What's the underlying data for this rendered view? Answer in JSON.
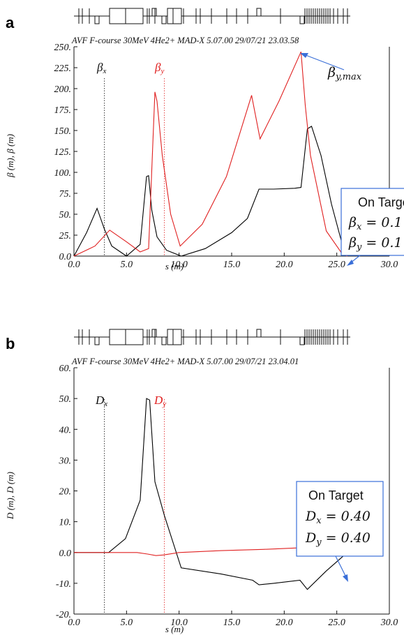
{
  "chart_data": [
    {
      "panel": "a",
      "type": "line",
      "header": "AVF F-course 30MeV 4He2+   MAD-X 5.07.00  29/07/21 23.03.58",
      "ylabel": "β (m), β (m)",
      "xlabel": "s (m)",
      "xlim": [
        0,
        30
      ],
      "ylim": [
        0,
        250
      ],
      "xticks": [
        "0.0",
        "5.0",
        "10.0",
        "15.0",
        "20.0",
        "25.0",
        "30.0"
      ],
      "yticks": [
        "0.0",
        "25.",
        "50.",
        "75.",
        "100.",
        "125.",
        "150.",
        "175.",
        "200.",
        "225.",
        "250."
      ],
      "grid": false,
      "series": [
        {
          "name": "βx",
          "color": "#000000",
          "marker_x": 2.9,
          "x": [
            0.0,
            1.2,
            2.2,
            2.9,
            3.6,
            5.0,
            6.3,
            6.9,
            7.1,
            7.4,
            7.9,
            8.8,
            10.2,
            12.5,
            15.0,
            16.5,
            17.6,
            19.0,
            21.0,
            21.6,
            22.2,
            22.6,
            23.5,
            24.5,
            25.5,
            26.0
          ],
          "y": [
            0.0,
            28.0,
            57.0,
            32.0,
            12.0,
            0.0,
            14.0,
            95.0,
            96.0,
            55.0,
            23.0,
            7.0,
            0.0,
            9.0,
            28.0,
            45.0,
            80.0,
            80.0,
            81.0,
            82.0,
            152.0,
            155.0,
            120.0,
            62.0,
            15.0,
            0.0
          ]
        },
        {
          "name": "βy",
          "color": "#e02020",
          "marker_x": 8.6,
          "x": [
            0.0,
            2.0,
            3.4,
            5.0,
            6.3,
            7.1,
            7.7,
            7.9,
            8.4,
            9.2,
            10.1,
            12.2,
            14.5,
            16.9,
            17.7,
            19.5,
            21.6,
            22.0,
            22.5,
            24.0,
            25.5,
            26.0
          ],
          "y": [
            0.0,
            12.0,
            31.0,
            17.0,
            5.0,
            9.0,
            196.0,
            185.0,
            120.0,
            50.0,
            12.0,
            38.0,
            95.0,
            192.0,
            140.0,
            185.0,
            244.0,
            180.0,
            120.0,
            30.0,
            3.0,
            0.0
          ]
        }
      ],
      "series_labels": [
        "βx",
        "βy"
      ],
      "annotations": {
        "beta_ymax_label": "βy,max",
        "target_box_title": "On Targe",
        "target_box_line1": "βx = 0.1",
        "target_box_line2": "βy = 0.1"
      }
    },
    {
      "panel": "b",
      "type": "line",
      "header": "AVF F-course 30MeV 4He2+   MAD-X 5.07.00  29/07/21 23.04.01",
      "ylabel": "D (m), D (m)",
      "xlabel": "s (m)",
      "xlim": [
        0,
        30
      ],
      "ylim": [
        -20,
        60
      ],
      "xticks": [
        "0.0",
        "5.0",
        "10.0",
        "15.0",
        "20.0",
        "25.0",
        "30.0"
      ],
      "yticks": [
        "-20.",
        "-10.",
        "0.0",
        "10.",
        "20.",
        "30.",
        "40.",
        "50.",
        "60."
      ],
      "grid": false,
      "series": [
        {
          "name": "Dx",
          "color": "#000000",
          "marker_x": 2.9,
          "x": [
            0.0,
            3.3,
            4.9,
            6.3,
            6.9,
            7.2,
            7.7,
            8.6,
            10.2,
            14.0,
            17.0,
            17.6,
            19.0,
            21.5,
            22.2,
            24.0,
            26.0
          ],
          "y": [
            0.0,
            0.0,
            4.5,
            17.0,
            50.0,
            49.5,
            23.0,
            12.0,
            -5.0,
            -7.0,
            -9.0,
            -10.5,
            -10.0,
            -9.0,
            -12.0,
            -6.0,
            0.0
          ],
          "label": "Dx"
        },
        {
          "name": "Dy",
          "color": "#e02020",
          "marker_x": 8.6,
          "x": [
            0.0,
            6.0,
            7.0,
            7.8,
            8.5,
            10.0,
            14.0,
            18.0,
            21.5,
            24.0,
            26.0
          ],
          "y": [
            0.0,
            0.0,
            -0.5,
            -1.0,
            -0.8,
            0.0,
            0.6,
            1.0,
            1.5,
            0.8,
            0.0
          ],
          "label": "Dy"
        }
      ],
      "series_labels": [
        "Dx",
        "Dy"
      ],
      "annotations": {
        "target_box_title": "On Target",
        "target_box_line1": "Dx = 0.40",
        "target_box_line2": "Dy = 0.40"
      }
    }
  ]
}
